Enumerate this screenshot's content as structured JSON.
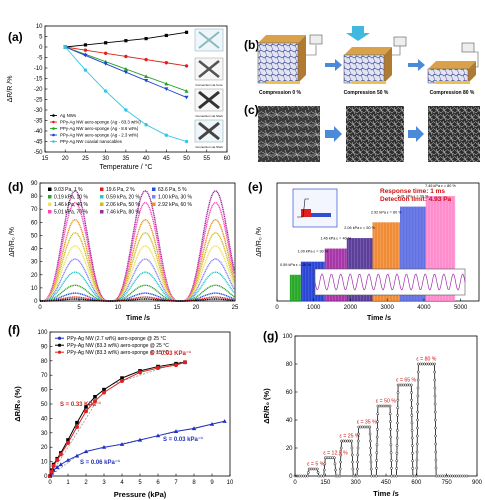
{
  "labels": {
    "a": "(a)",
    "b": "(b)",
    "c": "(c)",
    "d": "(d)",
    "e": "(e)",
    "f": "(f)",
    "g": "(g)"
  },
  "panel_a": {
    "ylabel": "ΔR/R /%",
    "xlabel": "Temperature / °C",
    "legend": [
      "Ag NWs",
      "PPy-Ag NW aero-sponge (Ag - 83.3 wt%)",
      "PPy-Ag NW aero-sponge (Ag - 8.6 wt%)",
      "PPy-Ag NW aero-sponge (Ag - 2.3 wt%)",
      "PPy-Ag NW coaxial nanocables"
    ],
    "insets": [
      "Connection via Core",
      "Connection via Shell",
      "Connection via Shell"
    ]
  },
  "panel_b": {
    "captions": [
      "Compression 0 %",
      "Compression 50 %",
      "Compression 80 %"
    ]
  },
  "panel_d": {
    "ylabel": "ΔR/R₀ /%",
    "xlabel": "Time /s",
    "legend": [
      "9.03 Pa, 1 %",
      "19.6 Pa, 2 %",
      "63.6 Pa, 5 %",
      "0.19 kPa, 10 %",
      "0.59 kPa, 20 %",
      "1.00 kPa, 30 %",
      "1.46 kPa, 40 %",
      "2.06 kPa, 50 %",
      "2.92 kPa, 60 %",
      "5.01 kPa, 70 %",
      "7.46 kPa, 80 %"
    ]
  },
  "panel_e": {
    "ylabel": "ΔR/R₀ /%",
    "xlabel": "Time /s",
    "note1": "Response time: 1 ms",
    "note2": "Detection limit: 4.93 Pa",
    "labels": [
      "0.59 kPa ε = 20 %",
      "1.00 kPa ε = 30 %",
      "1.46 kPa ε = 40 %",
      "2.06 kPa ε = 50 %",
      "2.92 kPa ε = 60 %",
      "5.01 kPa ε = 70 %",
      "7.46 kPa ε = 80 %"
    ]
  },
  "panel_f": {
    "ylabel": "ΔR/R₀ (%)",
    "xlabel": "Pressure (kPa)",
    "legend": [
      "PPy-Ag NW (2.7 wt%) aero-sponge @ 25 °C",
      "PPy-Ag NW (83.3 wt%) aero-sponge @ 25 °C",
      "PPy-Ag NW (83.3 wt%) aero-sponge @ 15 °C"
    ],
    "annotations": [
      "S = 0.03 KPa⁻¹",
      "S = 0.33 KPa⁻¹",
      "S = 0.03 kPa⁻¹",
      "S = 0.06 kPa⁻¹"
    ]
  },
  "panel_g": {
    "ylabel": "ΔR/R₀ (%)",
    "xlabel": "Time /s",
    "labels": [
      "ε = 5 %",
      "ε = 12.5 %",
      "ε = 25 %",
      "ε = 35 %",
      "ε = 50 %",
      "ε = 65 %",
      "ε = 80 %"
    ]
  },
  "chart_data": [
    {
      "id": "a",
      "type": "line",
      "x": [
        20,
        25,
        30,
        35,
        40,
        45,
        50
      ],
      "xlim": [
        15,
        60
      ],
      "ylim": [
        -50,
        10
      ],
      "xticks": [
        15,
        20,
        25,
        30,
        35,
        40,
        45,
        50,
        55,
        60
      ],
      "yticks": [
        -50,
        -45,
        -40,
        -35,
        -30,
        -25,
        -20,
        -15,
        -10,
        -5,
        0,
        5,
        10
      ],
      "series": [
        {
          "name": "Ag NWs",
          "color": "#000000",
          "values": [
            0,
            1,
            2,
            3,
            4,
            5.5,
            7
          ]
        },
        {
          "name": "PPy-Ag NW aero-sponge (Ag - 83.3 wt%)",
          "color": "#e02020",
          "values": [
            0,
            -1.5,
            -3,
            -4.5,
            -6,
            -7.5,
            -9
          ]
        },
        {
          "name": "PPy-Ag NW aero-sponge (Ag - 8.6 wt%)",
          "color": "#20a020",
          "values": [
            0,
            -3.5,
            -7,
            -10.5,
            -14,
            -17.5,
            -21
          ]
        },
        {
          "name": "PPy-Ag NW aero-sponge (Ag - 2.3 wt%)",
          "color": "#2040d0",
          "values": [
            0,
            -4,
            -8,
            -12,
            -16,
            -20,
            -24
          ]
        },
        {
          "name": "PPy-Ag NW coaxial nanocables",
          "color": "#30c8e8",
          "values": [
            0,
            -11,
            -21,
            -30,
            -37,
            -42,
            -45
          ]
        }
      ]
    },
    {
      "id": "d",
      "type": "line",
      "xlim": [
        0,
        25
      ],
      "ylim": [
        0,
        90
      ],
      "xticks": [
        0,
        5,
        10,
        15,
        20,
        25
      ],
      "yticks": [
        0,
        10,
        20,
        30,
        40,
        50,
        60,
        70,
        80,
        90
      ],
      "period": 9,
      "peaks_x": [
        4.5,
        13.5,
        22.5
      ],
      "series": [
        {
          "name": "7.46 kPa, 80 %",
          "color": "#9a2a9a",
          "amplitude": 84
        },
        {
          "name": "5.01 kPa, 70 %",
          "color": "#ff44bb",
          "amplitude": 75
        },
        {
          "name": "2.92 kPa, 60 %",
          "color": "#e89020",
          "amplitude": 62
        },
        {
          "name": "2.06 kPa, 50 %",
          "color": "#c8c020",
          "amplitude": 52
        },
        {
          "name": "1.46 kPa, 40 %",
          "color": "#f0e060",
          "amplitude": 42
        },
        {
          "name": "1.00 kPa, 30 %",
          "color": "#8080ff",
          "amplitude": 32
        },
        {
          "name": "0.59 kPa, 20 %",
          "color": "#20c8c8",
          "amplitude": 22
        },
        {
          "name": "0.19 kPa, 10 %",
          "color": "#30a030",
          "amplitude": 12
        },
        {
          "name": "63.6 Pa, 5 %",
          "color": "#2050e0",
          "amplitude": 6
        },
        {
          "name": "19.6 Pa, 2 %",
          "color": "#e02020",
          "amplitude": 3
        },
        {
          "name": "9.03 Pa, 1 %",
          "color": "#000000",
          "amplitude": 1.5
        }
      ]
    },
    {
      "id": "e",
      "type": "area",
      "xlim": [
        0,
        5500
      ],
      "ylim": [
        0,
        90
      ],
      "xticks": [
        0,
        1000,
        2000,
        3000,
        4000,
        5000
      ],
      "blocks": [
        {
          "x0": 350,
          "x1": 650,
          "value": 20,
          "color": "#10a010"
        },
        {
          "x0": 650,
          "x1": 1300,
          "value": 30,
          "color": "#1030d0"
        },
        {
          "x0": 1300,
          "x1": 1900,
          "value": 40,
          "color": "#a020a0"
        },
        {
          "x0": 1900,
          "x1": 2600,
          "value": 48,
          "color": "#4a2a90"
        },
        {
          "x0": 2600,
          "x1": 3350,
          "value": 60,
          "color": "#f08020"
        },
        {
          "x0": 3350,
          "x1": 4050,
          "value": 72,
          "color": "#5060e0"
        },
        {
          "x0": 4050,
          "x1": 4850,
          "value": 80,
          "color": "#ff80c8"
        }
      ]
    },
    {
      "id": "f",
      "type": "line",
      "xlim": [
        0,
        10
      ],
      "ylim": [
        0,
        100
      ],
      "xticks": [
        0,
        1,
        2,
        3,
        4,
        5,
        6,
        7,
        8,
        9,
        10
      ],
      "yticks": [
        0,
        10,
        20,
        30,
        40,
        50,
        60,
        70,
        80,
        90,
        100
      ],
      "series": [
        {
          "name": "PPy-Ag NW (2.7 wt%) aero-sponge @ 25 °C",
          "color": "#2030c0",
          "x": [
            0,
            0.1,
            0.2,
            0.4,
            0.6,
            1.0,
            1.5,
            2.0,
            3.0,
            4.0,
            5.0,
            6.0,
            7.0,
            8.0,
            9.0,
            9.7
          ],
          "values": [
            0,
            2,
            4,
            6,
            8,
            11,
            14,
            17,
            20,
            22,
            25,
            28,
            31,
            33,
            36,
            38
          ]
        },
        {
          "name": "PPy-Ag NW (83.3 wt%) aero-sponge @ 25 °C",
          "color": "#000000",
          "x": [
            0,
            0.1,
            0.2,
            0.4,
            0.6,
            1.0,
            1.5,
            2.0,
            2.5,
            3.0,
            4.0,
            5.0,
            6.0,
            7.0,
            7.5
          ],
          "values": [
            0,
            4,
            8,
            12,
            16,
            25,
            37,
            48,
            55,
            60,
            68,
            73,
            76,
            78,
            79
          ]
        },
        {
          "name": "PPy-Ag NW (83.3 wt%) aero-sponge @ 15 °C",
          "color": "#e02020",
          "x": [
            0,
            0.1,
            0.2,
            0.4,
            0.6,
            1.0,
            1.5,
            2.0,
            2.5,
            3.0,
            4.0,
            5.0,
            6.0,
            7.0,
            7.5
          ],
          "values": [
            0,
            3,
            7,
            11,
            15,
            23,
            34,
            45,
            52,
            58,
            66,
            72,
            75,
            77,
            79
          ]
        }
      ]
    },
    {
      "id": "g",
      "type": "line",
      "xlim": [
        0,
        900
      ],
      "ylim": [
        0,
        100
      ],
      "xticks": [
        0,
        150,
        300,
        450,
        600,
        750,
        900
      ],
      "yticks": [
        0,
        20,
        40,
        60,
        80,
        100
      ],
      "color": "#111111",
      "steps": [
        {
          "x0": 70,
          "x1": 110,
          "value": 5
        },
        {
          "x0": 150,
          "x1": 195,
          "value": 13
        },
        {
          "x0": 230,
          "x1": 280,
          "value": 25
        },
        {
          "x0": 315,
          "x1": 370,
          "value": 35
        },
        {
          "x0": 410,
          "x1": 470,
          "value": 50
        },
        {
          "x0": 510,
          "x1": 575,
          "value": 65
        },
        {
          "x0": 610,
          "x1": 690,
          "value": 80
        }
      ]
    }
  ]
}
